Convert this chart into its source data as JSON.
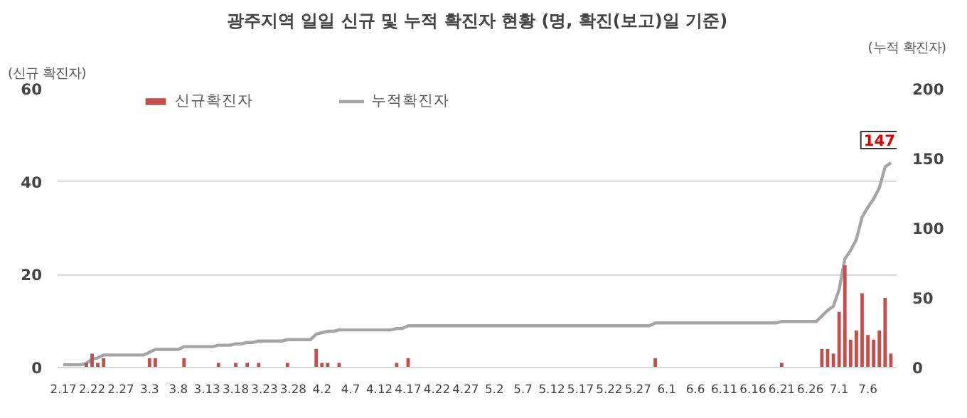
{
  "chart_data": {
    "type": "bar",
    "title": "광주지역 일일 신규 및 누적 확진자 현황 (명, 확진(보고)일 기준)",
    "ylabel": "(신규 확진자)",
    "y2label": "(누적 확진자)",
    "categories": [
      "2.17",
      null,
      null,
      null,
      null,
      "2.22",
      null,
      null,
      null,
      null,
      "2.27",
      null,
      null,
      null,
      null,
      "3.3",
      null,
      null,
      null,
      null,
      "3.8",
      null,
      null,
      null,
      null,
      "3.13",
      null,
      null,
      null,
      null,
      "3.18",
      null,
      null,
      null,
      null,
      "3.23",
      null,
      null,
      null,
      null,
      "3.28",
      null,
      null,
      null,
      null,
      "4.2",
      null,
      null,
      null,
      null,
      "4.7",
      null,
      null,
      null,
      null,
      "4.12",
      null,
      null,
      null,
      null,
      "4.17",
      null,
      null,
      null,
      null,
      "4.22",
      null,
      null,
      null,
      null,
      "4.27",
      null,
      null,
      null,
      null,
      "5.2",
      null,
      null,
      null,
      null,
      "5.7",
      null,
      null,
      null,
      null,
      "5.12",
      null,
      null,
      null,
      null,
      "5.17",
      null,
      null,
      null,
      null,
      "5.22",
      null,
      null,
      null,
      null,
      "5.27",
      null,
      null,
      null,
      null,
      "6.1",
      null,
      null,
      null,
      null,
      "6.6",
      null,
      null,
      null,
      null,
      "6.11",
      null,
      null,
      null,
      null,
      "6.16",
      null,
      null,
      null,
      null,
      "6.21",
      null,
      null,
      null,
      null,
      "6.26",
      null,
      null,
      null,
      null,
      "7.1",
      null,
      null,
      null,
      null,
      "7.6",
      null,
      null,
      null,
      null
    ],
    "series": [
      {
        "name": "신규확진자",
        "color": "#c0504d",
        "values": [
          0,
          0,
          0,
          0,
          1,
          3,
          1,
          2,
          0,
          0,
          0,
          0,
          0,
          0,
          0,
          2,
          2,
          0,
          0,
          0,
          0,
          2,
          0,
          0,
          0,
          0,
          0,
          1,
          0,
          0,
          1,
          0,
          1,
          0,
          1,
          0,
          0,
          0,
          0,
          1,
          0,
          0,
          0,
          0,
          4,
          1,
          1,
          0,
          1,
          0,
          0,
          0,
          0,
          0,
          0,
          0,
          0,
          0,
          1,
          0,
          2,
          0,
          0,
          0,
          0,
          0,
          0,
          0,
          0,
          0,
          0,
          0,
          0,
          0,
          0,
          0,
          0,
          0,
          0,
          0,
          0,
          0,
          0,
          0,
          0,
          0,
          0,
          0,
          0,
          0,
          0,
          0,
          0,
          0,
          0,
          0,
          0,
          0,
          0,
          0,
          0,
          0,
          0,
          2,
          0,
          0,
          0,
          0,
          0,
          0,
          0,
          0,
          0,
          0,
          0,
          0,
          0,
          0,
          0,
          0,
          0,
          0,
          0,
          0,
          0,
          1,
          0,
          0,
          0,
          0,
          0,
          0,
          4,
          4,
          3,
          12,
          22,
          6,
          8,
          16,
          7,
          6,
          8,
          15,
          3
        ]
      },
      {
        "name": "누적확진자",
        "type": "line",
        "axis": "y2",
        "color": "#a5a5a5",
        "values": [
          2,
          2,
          2,
          2,
          3,
          6,
          7,
          9,
          9,
          9,
          9,
          9,
          9,
          9,
          9,
          11,
          13,
          13,
          13,
          13,
          13,
          15,
          15,
          15,
          15,
          15,
          15,
          16,
          16,
          16,
          17,
          17,
          18,
          18,
          19,
          19,
          19,
          19,
          19,
          20,
          20,
          20,
          20,
          20,
          24,
          25,
          26,
          26,
          27,
          27,
          27,
          27,
          27,
          27,
          27,
          27,
          27,
          27,
          28,
          28,
          30,
          30,
          30,
          30,
          30,
          30,
          30,
          30,
          30,
          30,
          30,
          30,
          30,
          30,
          30,
          30,
          30,
          30,
          30,
          30,
          30,
          30,
          30,
          30,
          30,
          30,
          30,
          30,
          30,
          30,
          30,
          30,
          30,
          30,
          30,
          30,
          30,
          30,
          30,
          30,
          30,
          30,
          30,
          32,
          32,
          32,
          32,
          32,
          32,
          32,
          32,
          32,
          32,
          32,
          32,
          32,
          32,
          32,
          32,
          32,
          32,
          32,
          32,
          32,
          32,
          33,
          33,
          33,
          33,
          33,
          33,
          33,
          37,
          41,
          44,
          56,
          78,
          84,
          92,
          108,
          115,
          121,
          129,
          144,
          147
        ],
        "value_labels": [
          null,
          null,
          null,
          null,
          null,
          null,
          null,
          null,
          null,
          null,
          null,
          null,
          null,
          null,
          null,
          null,
          null,
          null,
          null,
          null,
          null,
          null,
          null,
          null,
          null,
          null,
          null,
          null,
          null,
          null,
          null,
          null,
          null,
          null,
          null,
          null,
          null,
          null,
          null,
          null,
          null,
          null,
          null,
          null,
          null,
          null,
          null,
          null,
          null,
          null,
          null,
          null,
          null,
          null,
          null,
          null,
          null,
          null,
          null,
          null,
          null,
          null,
          null,
          null,
          null,
          null,
          null,
          null,
          null,
          null,
          null,
          null,
          null,
          null,
          null,
          null,
          null,
          null,
          null,
          null,
          null,
          null,
          null,
          null,
          null,
          null,
          null,
          null,
          null,
          null,
          null,
          null,
          null,
          null,
          null,
          null,
          null,
          null,
          null,
          null,
          null,
          null,
          null,
          null,
          null,
          null,
          null,
          null,
          null,
          null,
          null,
          null,
          null,
          null,
          null,
          null,
          null,
          null,
          null,
          null,
          null,
          null,
          null,
          null,
          null,
          null,
          null,
          null,
          null,
          null,
          null,
          null,
          null,
          null,
          null,
          null,
          null,
          null,
          null,
          null,
          null,
          null,
          null,
          null,
          "147"
        ]
      }
    ],
    "ylim": [
      0,
      60
    ],
    "yticks": [
      0,
      20,
      40,
      60
    ],
    "y2lim": [
      0,
      200
    ],
    "y2ticks": [
      0,
      50,
      100,
      150,
      200
    ],
    "grid": "y",
    "legend": "top"
  }
}
